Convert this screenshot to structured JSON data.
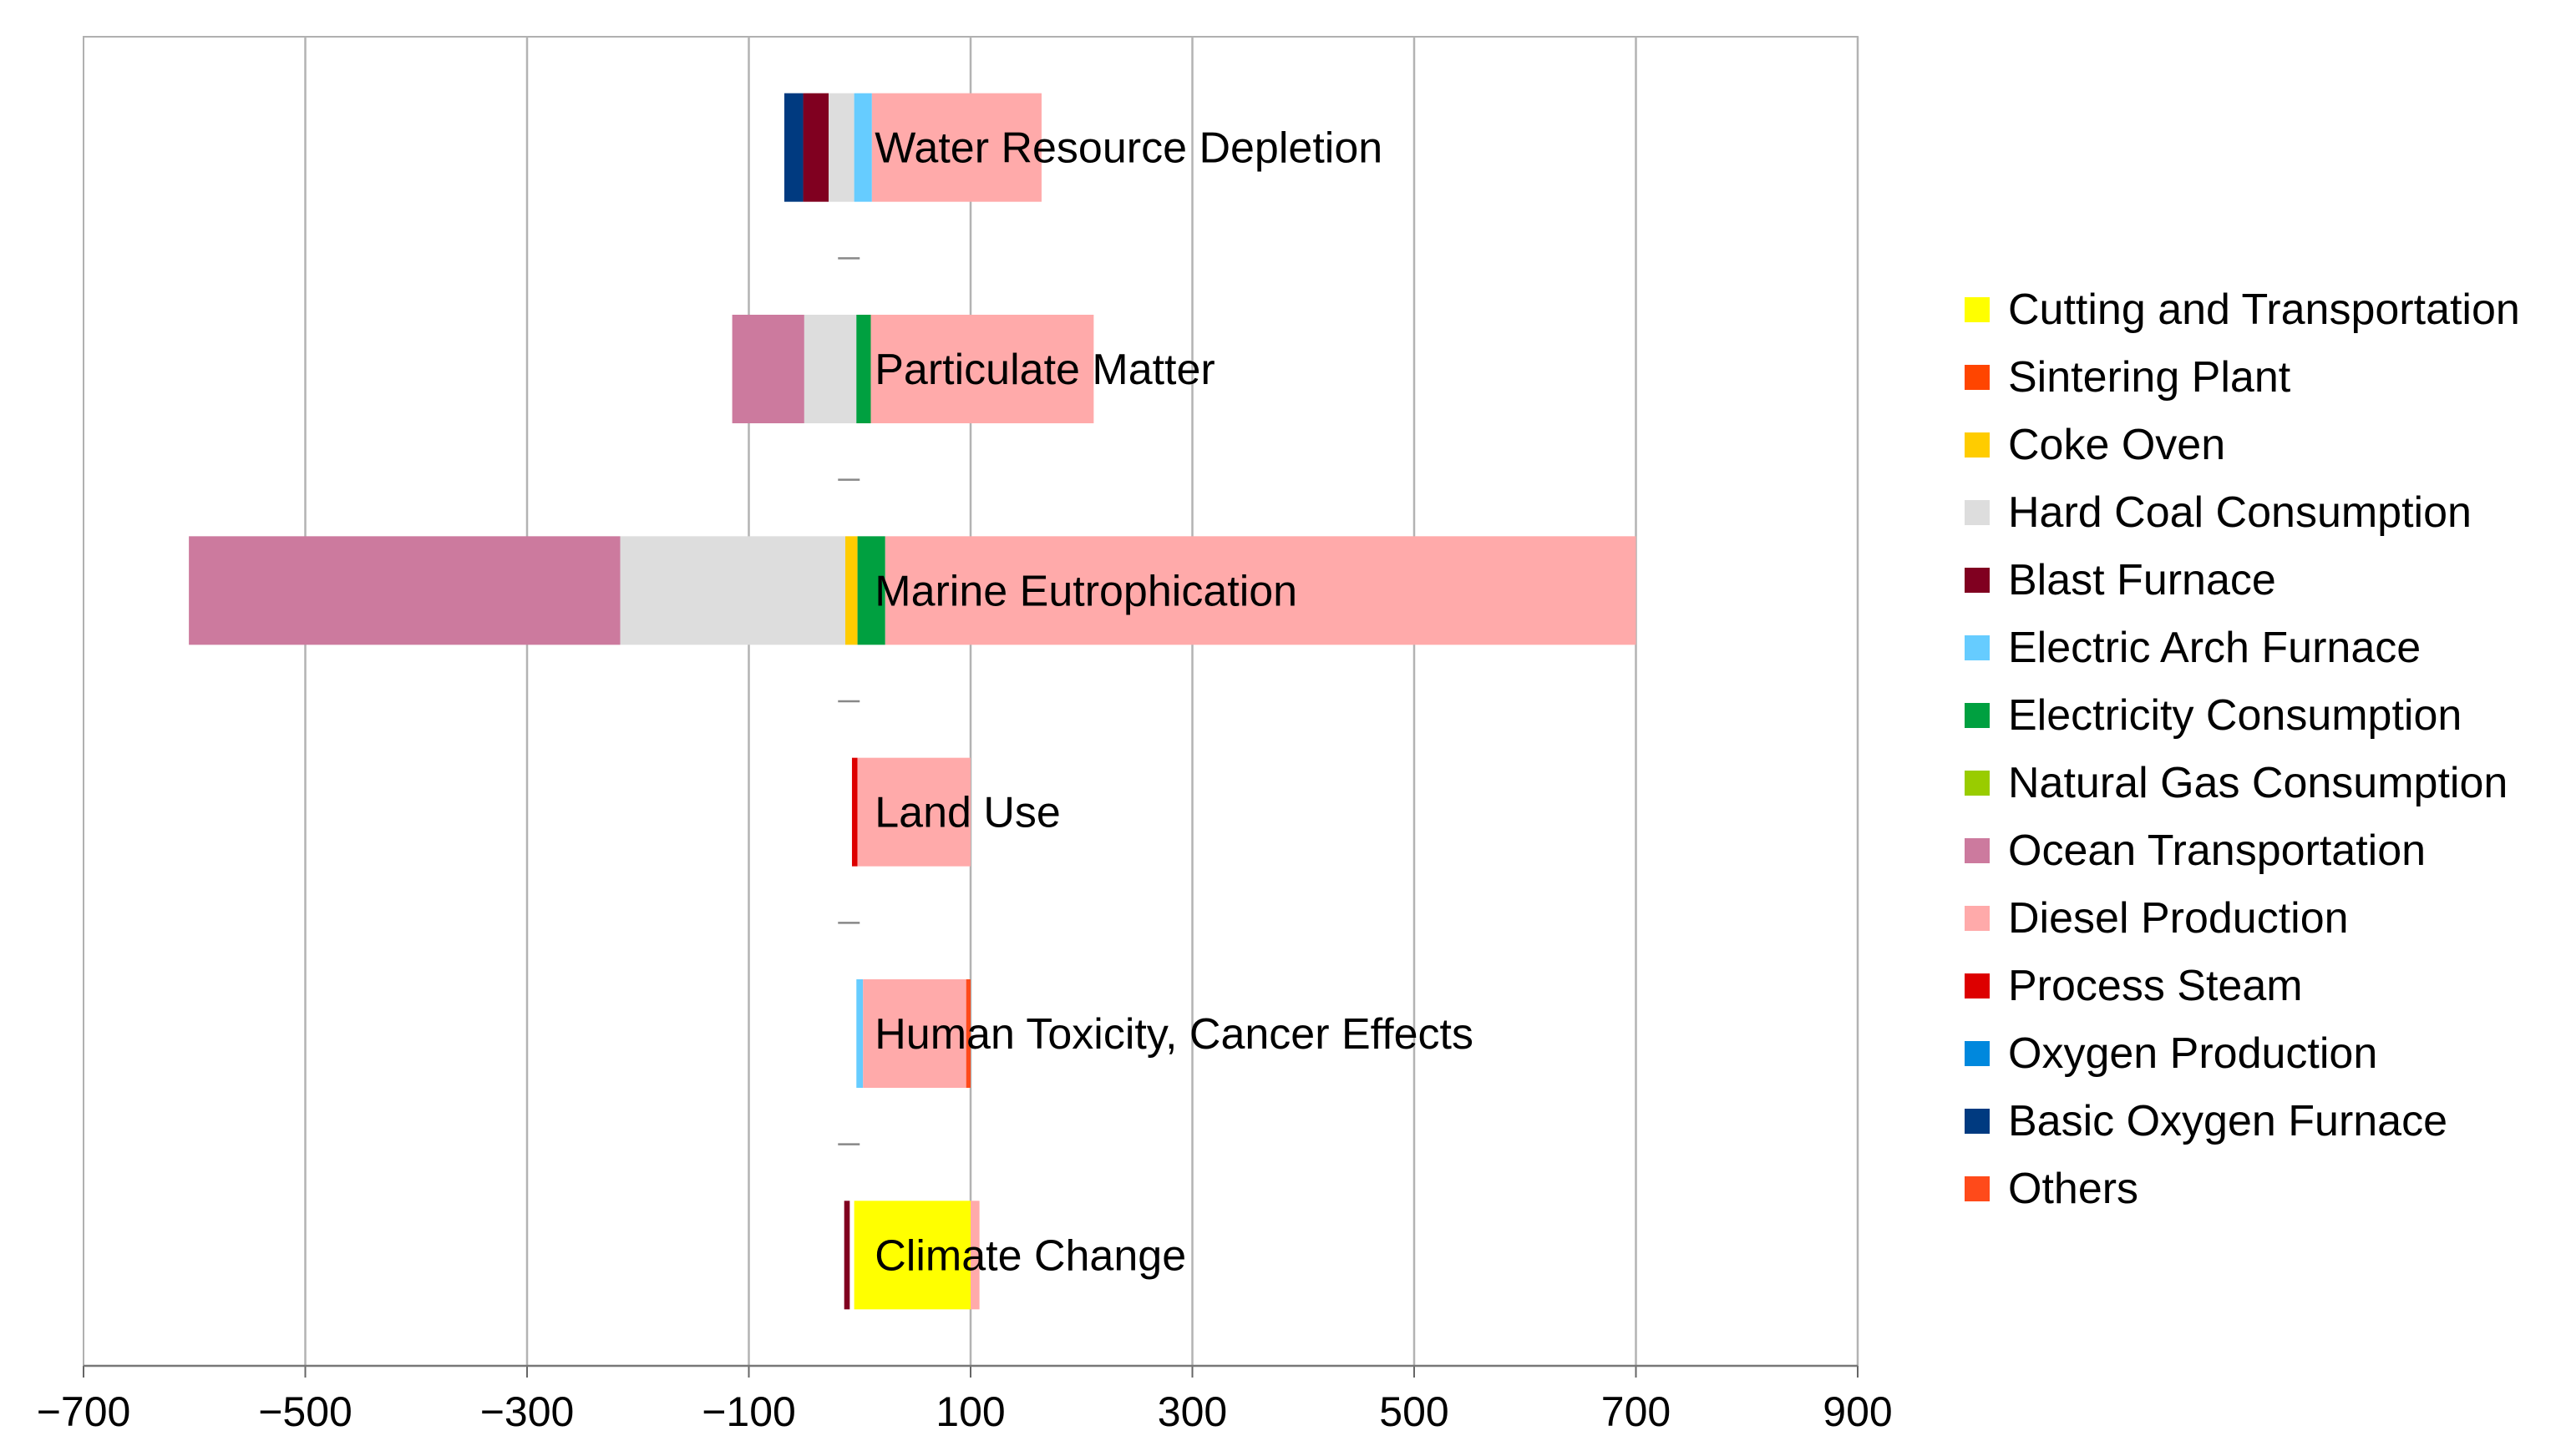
{
  "chart_data": {
    "type": "bar",
    "orientation": "horizontal",
    "stacked": true,
    "title": "",
    "xlabel": "",
    "ylabel": "",
    "xlim": [
      -700,
      900
    ],
    "xticks": [
      -700,
      -500,
      -300,
      -100,
      100,
      300,
      500,
      700,
      900
    ],
    "xtick_labels": [
      "−700",
      "−500",
      "−300",
      "−100",
      "100",
      "300",
      "500",
      "700",
      "900"
    ],
    "grid": "vertical",
    "legend_position": "right",
    "categories": [
      "Water Resource Depletion",
      "Particulate Matter",
      "Marine Eutrophication",
      "Land Use",
      "Human Toxicity, Cancer Effects",
      "Climate Change"
    ],
    "legend": [
      {
        "name": "Cutting and Transportation",
        "color": "#FFFF00"
      },
      {
        "name": "Sintering Plant",
        "color": "#FF4500"
      },
      {
        "name": "Coke Oven",
        "color": "#FFCC00"
      },
      {
        "name": "Hard Coal Consumption",
        "color": "#DDDDDD"
      },
      {
        "name": "Blast Furnace",
        "color": "#800020"
      },
      {
        "name": "Electric Arch Furnace",
        "color": "#66CCFF"
      },
      {
        "name": "Electricity Consumption",
        "color": "#00A040"
      },
      {
        "name": "Natural Gas Consumption",
        "color": "#99CC00"
      },
      {
        "name": "Ocean Transportation",
        "color": "#CC7A9E"
      },
      {
        "name": "Diesel Production",
        "color": "#FFAAAA"
      },
      {
        "name": "Process Steam",
        "color": "#DD0000"
      },
      {
        "name": "Oxygen Production",
        "color": "#0088DD"
      },
      {
        "name": "Basic Oxygen Furnace",
        "color": "#003A80"
      },
      {
        "name": "Others",
        "color": "#FF4A1A"
      }
    ],
    "segments": [
      {
        "category": 0,
        "series": "Basic Oxygen Furnace",
        "color": "#003A80",
        "start": -68,
        "end": -51
      },
      {
        "category": 0,
        "series": "Blast Furnace",
        "color": "#800020",
        "start": -51,
        "end": -28
      },
      {
        "category": 0,
        "series": "Hard Coal Consumption",
        "color": "#DDDDDD",
        "start": -28,
        "end": -5
      },
      {
        "category": 0,
        "series": "Electric Arch Furnace",
        "color": "#66CCFF",
        "start": -5,
        "end": 11
      },
      {
        "category": 0,
        "series": "Diesel Production",
        "color": "#FFAAAA",
        "start": 11,
        "end": 164
      },
      {
        "category": 1,
        "series": "Ocean Transportation",
        "color": "#CC7A9E",
        "start": -115,
        "end": -50
      },
      {
        "category": 1,
        "series": "Hard Coal Consumption",
        "color": "#DDDDDD",
        "start": -50,
        "end": -3
      },
      {
        "category": 1,
        "series": "Electricity Consumption",
        "color": "#00A040",
        "start": -3,
        "end": 10
      },
      {
        "category": 1,
        "series": "Diesel Production",
        "color": "#FFAAAA",
        "start": 10,
        "end": 211
      },
      {
        "category": 2,
        "series": "Ocean Transportation",
        "color": "#CC7A9E",
        "start": -605,
        "end": -216
      },
      {
        "category": 2,
        "series": "Hard Coal Consumption",
        "color": "#DDDDDD",
        "start": -216,
        "end": -13
      },
      {
        "category": 2,
        "series": "Coke Oven",
        "color": "#FFCC00",
        "start": -13,
        "end": -2
      },
      {
        "category": 2,
        "series": "Electricity Consumption",
        "color": "#00A040",
        "start": -2,
        "end": 23
      },
      {
        "category": 2,
        "series": "Diesel Production",
        "color": "#FFAAAA",
        "start": 23,
        "end": 700
      },
      {
        "category": 3,
        "series": "Process Steam",
        "color": "#DD0000",
        "start": -7,
        "end": -2
      },
      {
        "category": 3,
        "series": "Diesel Production",
        "color": "#FFAAAA",
        "start": -2,
        "end": 100
      },
      {
        "category": 4,
        "series": "Electric Arch Furnace",
        "color": "#66CCFF",
        "start": -3,
        "end": 3
      },
      {
        "category": 4,
        "series": "Diesel Production",
        "color": "#FFAAAA",
        "start": 3,
        "end": 96
      },
      {
        "category": 4,
        "series": "Others",
        "color": "#FF4A1A",
        "start": 96,
        "end": 100
      },
      {
        "category": 5,
        "series": "Blast Furnace",
        "color": "#800020",
        "start": -14,
        "end": -9
      },
      {
        "category": 5,
        "series": "Cutting and Transportation",
        "color": "#FFFF00",
        "start": -5,
        "end": 100
      },
      {
        "category": 5,
        "series": "Diesel Production",
        "color": "#FFAAAA",
        "start": 100,
        "end": 108
      }
    ]
  }
}
